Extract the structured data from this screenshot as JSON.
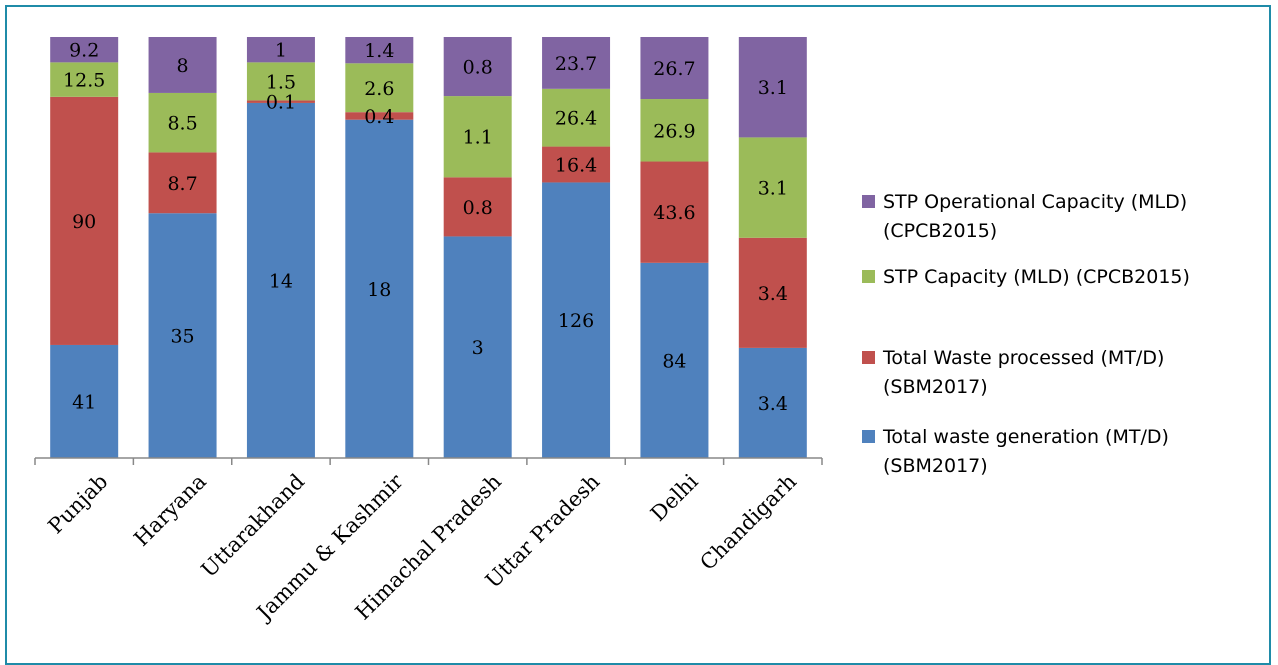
{
  "chart_data": {
    "type": "bar",
    "stacked": "percent",
    "categories": [
      "Punjab",
      "Haryana",
      "Uttarakhand",
      "Jammu & Kashmir",
      "Himachal Pradesh",
      "Uttar Pradesh",
      "Delhi",
      "Chandigarh"
    ],
    "series": [
      {
        "name": "Total waste generation (MT/D) (SBM2017)",
        "name_lines": [
          "Total waste generation (MT/D)",
          "(SBM2017)"
        ],
        "color": "#4f81bd",
        "values": [
          41,
          35,
          14,
          18,
          3,
          126,
          84,
          3.4
        ],
        "labels": [
          "41",
          "35",
          "14",
          "18",
          "3",
          "126",
          "84",
          "3.4"
        ]
      },
      {
        "name": "Total Waste processed (MT/D) (SBM2017)",
        "name_lines": [
          "Total Waste processed (MT/D)",
          "(SBM2017)"
        ],
        "color": "#c0504d",
        "values": [
          90,
          8.7,
          0.1,
          0.4,
          0.8,
          16.4,
          43.6,
          3.4
        ],
        "labels": [
          "90",
          "8.7",
          "0.1",
          "0.4",
          "0.8",
          "16.4",
          "43.6",
          "3.4"
        ]
      },
      {
        "name": "STP Capacity (MLD) (CPCB2015)",
        "name_lines": [
          "STP Capacity (MLD) (CPCB2015)"
        ],
        "color": "#9bbb59",
        "values": [
          12.5,
          8.5,
          1.5,
          2.6,
          1.1,
          26.4,
          26.9,
          3.1
        ],
        "labels": [
          "12.5",
          "8.5",
          "1.5",
          "2.6",
          "1.1",
          "26.4",
          "26.9",
          "3.1"
        ]
      },
      {
        "name": "STP Operational Capacity (MLD) (CPCB2015)",
        "name_lines": [
          "STP Operational Capacity (MLD)",
          "(CPCB2015)"
        ],
        "color": "#8064a2",
        "values": [
          9.2,
          8,
          1,
          1.4,
          0.8,
          23.7,
          26.7,
          3.1
        ],
        "labels": [
          "9.2",
          "8",
          "1",
          "1.4",
          "0.8",
          "23.7",
          "26.7",
          "3.1"
        ]
      }
    ],
    "legend_order": [
      3,
      2,
      1,
      0
    ],
    "legend_position": "right",
    "grid": false,
    "title": "",
    "xlabel": "",
    "ylabel": ""
  }
}
